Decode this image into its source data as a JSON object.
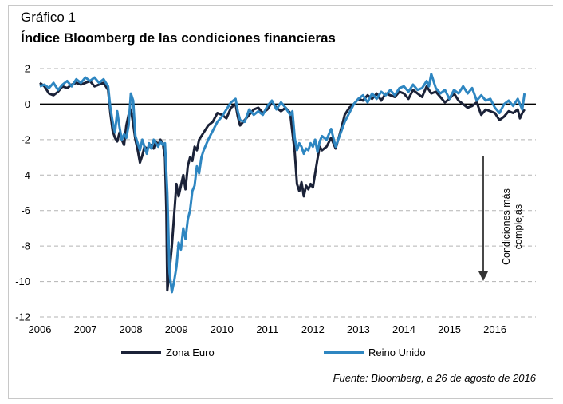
{
  "header": {
    "label": "Gráfico 1",
    "title": "Índice Bloomberg de las condiciones financieras"
  },
  "annotation": {
    "line1": "Condiciones más",
    "line2": "complejas"
  },
  "source": "Fuente: Bloomberg, a 26 de agosto de 2016",
  "chart_data": {
    "type": "line",
    "title": "Índice Bloomberg de las condiciones financieras",
    "xlabel": "",
    "ylabel": "",
    "xlim": [
      2006,
      2016.9
    ],
    "ylim": [
      -12,
      2
    ],
    "yticks": [
      2,
      0,
      -2,
      -4,
      -6,
      -8,
      -10,
      -12
    ],
    "xticks": [
      2006,
      2007,
      2008,
      2009,
      2010,
      2011,
      2012,
      2013,
      2014,
      2015,
      2016
    ],
    "grid": "horizontal-dashed",
    "legend_position": "bottom",
    "series": [
      {
        "name": "Zona Euro",
        "color": "#1b2238",
        "x": [
          2006.0,
          2006.1,
          2006.2,
          2006.3,
          2006.4,
          2006.5,
          2006.6,
          2006.7,
          2006.8,
          2006.9,
          2007.0,
          2007.1,
          2007.2,
          2007.3,
          2007.4,
          2007.5,
          2007.55,
          2007.6,
          2007.65,
          2007.7,
          2007.75,
          2007.8,
          2007.85,
          2007.9,
          2007.95,
          2008.0,
          2008.05,
          2008.1,
          2008.15,
          2008.2,
          2008.25,
          2008.3,
          2008.35,
          2008.4,
          2008.45,
          2008.5,
          2008.55,
          2008.6,
          2008.65,
          2008.7,
          2008.75,
          2008.78,
          2008.8,
          2008.85,
          2008.9,
          2008.95,
          2009.0,
          2009.05,
          2009.1,
          2009.15,
          2009.2,
          2009.25,
          2009.3,
          2009.35,
          2009.4,
          2009.45,
          2009.5,
          2009.6,
          2009.7,
          2009.8,
          2009.9,
          2010.0,
          2010.1,
          2010.2,
          2010.3,
          2010.35,
          2010.4,
          2010.5,
          2010.6,
          2010.7,
          2010.8,
          2010.9,
          2011.0,
          2011.1,
          2011.2,
          2011.3,
          2011.4,
          2011.5,
          2011.55,
          2011.6,
          2011.65,
          2011.7,
          2011.75,
          2011.8,
          2011.85,
          2011.9,
          2011.95,
          2012.0,
          2012.05,
          2012.1,
          2012.15,
          2012.2,
          2012.3,
          2012.4,
          2012.5,
          2012.6,
          2012.7,
          2012.8,
          2012.9,
          2013.0,
          2013.1,
          2013.2,
          2013.3,
          2013.4,
          2013.5,
          2013.6,
          2013.7,
          2013.8,
          2013.9,
          2014.0,
          2014.1,
          2014.2,
          2014.3,
          2014.4,
          2014.5,
          2014.6,
          2014.7,
          2014.8,
          2014.9,
          2015.0,
          2015.1,
          2015.2,
          2015.3,
          2015.4,
          2015.5,
          2015.6,
          2015.7,
          2015.8,
          2015.9,
          2016.0,
          2016.1,
          2016.2,
          2016.3,
          2016.4,
          2016.5,
          2016.55,
          2016.6,
          2016.65
        ],
        "y": [
          1.2,
          1.0,
          0.6,
          0.5,
          0.7,
          1.0,
          0.9,
          1.1,
          1.2,
          1.1,
          1.2,
          1.3,
          1.0,
          1.1,
          1.2,
          0.8,
          -0.5,
          -1.5,
          -1.9,
          -2.1,
          -1.6,
          -2.0,
          -2.3,
          -1.2,
          -0.6,
          -0.3,
          -1.1,
          -2.0,
          -2.6,
          -3.3,
          -2.9,
          -2.4,
          -2.5,
          -2.4,
          -2.3,
          -2.5,
          -2.1,
          -2.3,
          -2.0,
          -2.2,
          -3.0,
          -6.0,
          -10.5,
          -9.4,
          -8.0,
          -6.3,
          -4.5,
          -5.2,
          -4.6,
          -4.0,
          -4.8,
          -3.5,
          -3.0,
          -3.2,
          -2.4,
          -2.6,
          -2.0,
          -1.6,
          -1.2,
          -1.0,
          -0.5,
          -0.6,
          -0.8,
          -0.2,
          0.0,
          -0.7,
          -1.2,
          -0.9,
          -0.6,
          -0.3,
          -0.2,
          -0.5,
          -0.3,
          0.1,
          -0.2,
          -0.4,
          -0.2,
          -0.5,
          -1.6,
          -2.7,
          -4.5,
          -4.9,
          -4.4,
          -5.2,
          -4.6,
          -4.8,
          -4.5,
          -4.7,
          -3.9,
          -3.1,
          -2.4,
          -2.6,
          -2.4,
          -1.9,
          -2.5,
          -1.6,
          -0.6,
          -0.2,
          0.0,
          0.3,
          0.2,
          0.5,
          0.3,
          0.6,
          0.2,
          0.6,
          0.5,
          0.4,
          0.7,
          0.6,
          0.3,
          0.8,
          0.6,
          0.4,
          1.0,
          0.6,
          0.7,
          0.4,
          0.1,
          0.3,
          0.6,
          0.2,
          0.0,
          -0.2,
          -0.1,
          0.1,
          -0.6,
          -0.3,
          -0.4,
          -0.5,
          -0.9,
          -0.7,
          -0.4,
          -0.5,
          -0.3,
          -0.8,
          -0.5,
          -0.3
        ]
      },
      {
        "name": "Reino Unido",
        "color": "#2e86c1",
        "x": [
          2006.0,
          2006.1,
          2006.2,
          2006.3,
          2006.4,
          2006.5,
          2006.6,
          2006.7,
          2006.8,
          2006.9,
          2007.0,
          2007.1,
          2007.2,
          2007.3,
          2007.4,
          2007.5,
          2007.55,
          2007.6,
          2007.65,
          2007.7,
          2007.75,
          2007.8,
          2007.85,
          2007.9,
          2007.95,
          2008.0,
          2008.05,
          2008.1,
          2008.15,
          2008.2,
          2008.25,
          2008.3,
          2008.35,
          2008.4,
          2008.45,
          2008.5,
          2008.55,
          2008.6,
          2008.65,
          2008.7,
          2008.75,
          2008.8,
          2008.85,
          2008.9,
          2008.95,
          2009.0,
          2009.05,
          2009.1,
          2009.15,
          2009.2,
          2009.25,
          2009.3,
          2009.35,
          2009.4,
          2009.45,
          2009.5,
          2009.55,
          2009.6,
          2009.7,
          2009.8,
          2009.9,
          2010.0,
          2010.1,
          2010.2,
          2010.3,
          2010.35,
          2010.4,
          2010.5,
          2010.6,
          2010.7,
          2010.8,
          2010.9,
          2011.0,
          2011.1,
          2011.2,
          2011.3,
          2011.4,
          2011.5,
          2011.55,
          2011.6,
          2011.65,
          2011.7,
          2011.75,
          2011.8,
          2011.85,
          2011.9,
          2011.95,
          2012.0,
          2012.05,
          2012.1,
          2012.15,
          2012.2,
          2012.3,
          2012.4,
          2012.5,
          2012.6,
          2012.7,
          2012.8,
          2012.9,
          2013.0,
          2013.1,
          2013.2,
          2013.3,
          2013.4,
          2013.5,
          2013.6,
          2013.7,
          2013.8,
          2013.9,
          2014.0,
          2014.1,
          2014.2,
          2014.3,
          2014.4,
          2014.5,
          2014.55,
          2014.6,
          2014.7,
          2014.8,
          2014.9,
          2015.0,
          2015.1,
          2015.2,
          2015.3,
          2015.4,
          2015.5,
          2015.6,
          2015.7,
          2015.8,
          2015.9,
          2016.0,
          2016.1,
          2016.2,
          2016.3,
          2016.4,
          2016.5,
          2016.55,
          2016.6,
          2016.65
        ],
        "y": [
          1.0,
          1.1,
          0.9,
          1.2,
          0.8,
          1.1,
          1.3,
          1.0,
          1.4,
          1.2,
          1.5,
          1.3,
          1.5,
          1.2,
          1.4,
          1.0,
          -0.2,
          -1.0,
          -1.6,
          -0.4,
          -1.3,
          -2.0,
          -1.7,
          -1.9,
          -1.2,
          0.6,
          0.2,
          -1.8,
          -2.2,
          -2.6,
          -2.0,
          -2.4,
          -2.8,
          -2.2,
          -2.5,
          -2.0,
          -2.2,
          -2.4,
          -2.1,
          -2.3,
          -2.2,
          -5.0,
          -9.5,
          -10.6,
          -10.0,
          -9.2,
          -7.8,
          -8.2,
          -7.0,
          -7.6,
          -6.5,
          -6.0,
          -4.9,
          -4.6,
          -3.5,
          -3.9,
          -3.0,
          -2.6,
          -2.0,
          -1.5,
          -1.0,
          -0.7,
          -0.3,
          0.1,
          0.3,
          -0.4,
          -0.9,
          -1.0,
          -0.3,
          -0.6,
          -0.4,
          -0.6,
          -0.1,
          0.2,
          -0.3,
          0.1,
          -0.2,
          -0.6,
          -0.4,
          -1.9,
          -2.6,
          -2.2,
          -2.4,
          -2.8,
          -2.5,
          -2.6,
          -2.2,
          -2.4,
          -2.0,
          -2.7,
          -2.1,
          -1.8,
          -2.0,
          -1.4,
          -2.4,
          -1.7,
          -1.0,
          -0.5,
          0.0,
          0.3,
          0.5,
          0.1,
          0.6,
          0.3,
          0.7,
          0.5,
          0.8,
          0.5,
          0.9,
          1.0,
          0.7,
          1.1,
          0.8,
          0.9,
          1.3,
          1.0,
          1.7,
          0.9,
          0.6,
          0.8,
          0.3,
          0.8,
          0.6,
          1.0,
          0.6,
          0.9,
          0.2,
          0.5,
          0.2,
          0.3,
          -0.2,
          -0.5,
          0.0,
          0.2,
          -0.1,
          0.3,
          0.0,
          -0.3,
          0.6
        ]
      }
    ]
  }
}
